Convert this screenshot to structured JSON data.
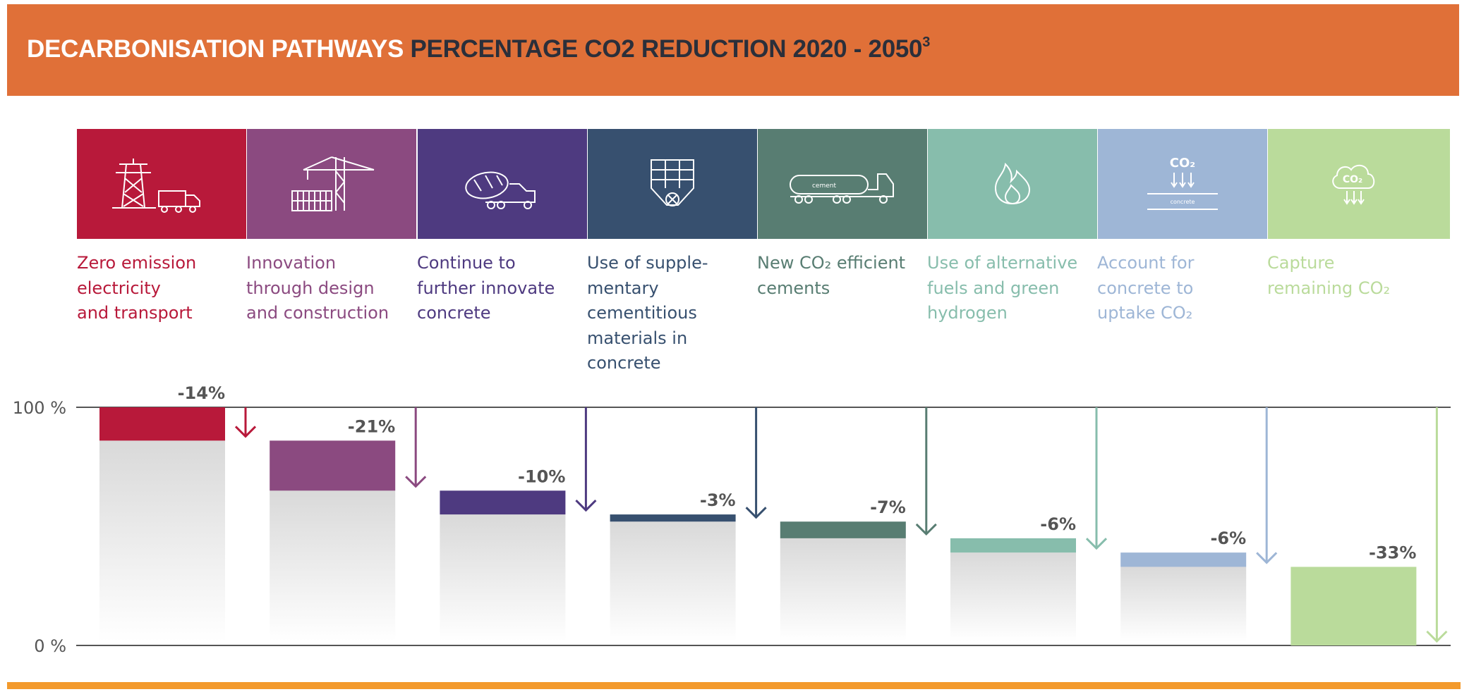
{
  "header": {
    "title_part1": "DECARBONISATION PATHWAYS",
    "title_part2": "PERCENTAGE CO2 REDUCTION 2020 - 2050",
    "footnote": "3"
  },
  "steps": [
    {
      "lines": [
        "Zero emission",
        "electricity",
        "and transport"
      ],
      "color": "#b8193a",
      "icon": "power-pylon-truck-icon"
    },
    {
      "lines": [
        "Innovation",
        "through design",
        "and construction"
      ],
      "color": "#8b4a80",
      "icon": "construction-crane-icon"
    },
    {
      "lines": [
        "Continue to",
        "further innovate",
        "concrete"
      ],
      "color": "#4e3a80",
      "icon": "concrete-mixer-truck-icon"
    },
    {
      "lines": [
        "Use of supple-",
        "mentary",
        "cementitious",
        "materials in",
        "concrete"
      ],
      "color": "#37506f",
      "icon": "cement-silo-icon"
    },
    {
      "lines": [
        "New CO₂ efficient",
        "cements"
      ],
      "color": "#587d72",
      "icon": "cement-tanker-truck-icon"
    },
    {
      "lines": [
        "Use of alternative",
        "fuels and green",
        "hydrogen"
      ],
      "color": "#87bdac",
      "icon": "flame-icon"
    },
    {
      "lines": [
        "Account for",
        "concrete to",
        "uptake CO₂"
      ],
      "color": "#9eb6d6",
      "icon": "co2-uptake-icon"
    },
    {
      "lines": [
        "Capture",
        "remaining CO₂"
      ],
      "color": "#badb9b",
      "icon": "co2-cloud-capture-icon"
    }
  ],
  "icon_texts": {
    "cement": "cement",
    "co2": "CO₂",
    "concrete": "concrete"
  },
  "chart_data": {
    "type": "bar",
    "title": "PERCENTAGE CO2 REDUCTION 2020 - 2050",
    "categories": [
      "Zero emission electricity and transport",
      "Innovation through design and construction",
      "Continue to further innovate concrete",
      "Use of supplementary cementitious materials in concrete",
      "New CO₂ efficient cements",
      "Use of alternative fuels and green hydrogen",
      "Account for concrete to uptake CO₂",
      "Capture remaining CO₂"
    ],
    "values": [
      -14,
      -21,
      -10,
      -3,
      -7,
      -6,
      -6,
      -33
    ],
    "labels": [
      "-14%",
      "-21%",
      "-10%",
      "-3%",
      "-7%",
      "-6%",
      "-6%",
      "-33%"
    ],
    "start_level": 100,
    "ylim": [
      0,
      100
    ],
    "yticks": [
      "100 %",
      "0 %"
    ]
  }
}
